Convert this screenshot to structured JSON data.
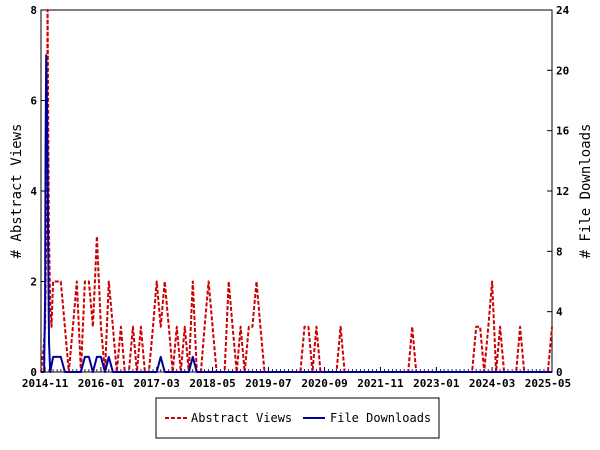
{
  "chart_data": {
    "type": "line",
    "title": "",
    "xlabel": "",
    "ylabel_left": "# Abstract Views",
    "ylabel_right": "# File Downloads",
    "x_range": [
      "2014-10-01",
      "2025-06-01"
    ],
    "x_ticks": [
      "2014-11",
      "2016-01",
      "2017-03",
      "2018-05",
      "2019-07",
      "2020-09",
      "2021-11",
      "2023-01",
      "2024-03",
      "2025-05"
    ],
    "ylim_left": [
      0,
      8
    ],
    "y_ticks_left": [
      0,
      2,
      4,
      6,
      8
    ],
    "ylim_right": [
      0,
      24
    ],
    "y_ticks_right": [
      0,
      4,
      8,
      12,
      16,
      20,
      24
    ],
    "legend_position": "bottom",
    "grid": false,
    "series": [
      {
        "name": "Abstract Views",
        "axis": "left",
        "color": "#cc0000",
        "style": "dashed",
        "points": [
          [
            "2014-10-01",
            0
          ],
          [
            "2014-10-20",
            0.5
          ],
          [
            "2014-11-01",
            1
          ],
          [
            "2014-11-10",
            3
          ],
          [
            "2014-11-15",
            5
          ],
          [
            "2014-11-20",
            8
          ],
          [
            "2014-11-25",
            5.5
          ],
          [
            "2014-12-01",
            3
          ],
          [
            "2014-12-10",
            1.5
          ],
          [
            "2014-12-20",
            1
          ],
          [
            "2015-01-01",
            2
          ],
          [
            "2015-02-01",
            2
          ],
          [
            "2015-03-01",
            2
          ],
          [
            "2015-04-01",
            1
          ],
          [
            "2015-05-01",
            0
          ],
          [
            "2015-06-01",
            1
          ],
          [
            "2015-07-01",
            2
          ],
          [
            "2015-08-01",
            0
          ],
          [
            "2015-09-01",
            2
          ],
          [
            "2015-10-01",
            2
          ],
          [
            "2015-11-01",
            1
          ],
          [
            "2015-12-01",
            3
          ],
          [
            "2016-01-01",
            1
          ],
          [
            "2016-02-01",
            0
          ],
          [
            "2016-03-01",
            2
          ],
          [
            "2016-04-01",
            1
          ],
          [
            "2016-05-01",
            0
          ],
          [
            "2016-06-01",
            1
          ],
          [
            "2016-07-01",
            0
          ],
          [
            "2016-08-01",
            0
          ],
          [
            "2016-09-01",
            1
          ],
          [
            "2016-10-01",
            0
          ],
          [
            "2016-11-01",
            1
          ],
          [
            "2016-12-01",
            0
          ],
          [
            "2017-01-01",
            0
          ],
          [
            "2017-02-01",
            1
          ],
          [
            "2017-03-01",
            2
          ],
          [
            "2017-04-01",
            1
          ],
          [
            "2017-05-01",
            2
          ],
          [
            "2017-06-01",
            1
          ],
          [
            "2017-07-01",
            0
          ],
          [
            "2017-08-01",
            1
          ],
          [
            "2017-09-01",
            0
          ],
          [
            "2017-10-01",
            1
          ],
          [
            "2017-11-01",
            0
          ],
          [
            "2017-12-01",
            2
          ],
          [
            "2018-01-01",
            0
          ],
          [
            "2018-02-01",
            0
          ],
          [
            "2018-03-01",
            1
          ],
          [
            "2018-04-01",
            2
          ],
          [
            "2018-05-01",
            1
          ],
          [
            "2018-06-01",
            0
          ],
          [
            "2018-07-01",
            0
          ],
          [
            "2018-08-01",
            0
          ],
          [
            "2018-09-01",
            2
          ],
          [
            "2018-10-01",
            1
          ],
          [
            "2018-11-01",
            0
          ],
          [
            "2018-12-01",
            1
          ],
          [
            "2019-01-01",
            0
          ],
          [
            "2019-02-01",
            1
          ],
          [
            "2019-03-01",
            1
          ],
          [
            "2019-04-01",
            2
          ],
          [
            "2019-05-01",
            1
          ],
          [
            "2019-06-01",
            0
          ],
          [
            "2019-07-01",
            0
          ],
          [
            "2019-08-01",
            0
          ],
          [
            "2019-09-01",
            0
          ],
          [
            "2019-10-01",
            0
          ],
          [
            "2019-11-01",
            0
          ],
          [
            "2019-12-01",
            0
          ],
          [
            "2020-01-01",
            0
          ],
          [
            "2020-02-01",
            0
          ],
          [
            "2020-03-01",
            0
          ],
          [
            "2020-04-01",
            1
          ],
          [
            "2020-05-01",
            1
          ],
          [
            "2020-06-01",
            0
          ],
          [
            "2020-07-01",
            1
          ],
          [
            "2020-08-01",
            0
          ],
          [
            "2020-09-01",
            0
          ],
          [
            "2020-10-01",
            0
          ],
          [
            "2020-11-01",
            0
          ],
          [
            "2020-12-01",
            0
          ],
          [
            "2021-01-01",
            1
          ],
          [
            "2021-02-01",
            0
          ],
          [
            "2021-03-01",
            0
          ],
          [
            "2022-01-01",
            0
          ],
          [
            "2022-02-01",
            0
          ],
          [
            "2022-03-01",
            0
          ],
          [
            "2022-04-01",
            0
          ],
          [
            "2022-05-01",
            0
          ],
          [
            "2022-06-01",
            0
          ],
          [
            "2022-07-01",
            1
          ],
          [
            "2022-08-01",
            0
          ],
          [
            "2022-09-01",
            0
          ],
          [
            "2023-01-01",
            0
          ],
          [
            "2023-02-01",
            0
          ],
          [
            "2023-03-01",
            0
          ],
          [
            "2023-04-01",
            0
          ],
          [
            "2023-05-01",
            0
          ],
          [
            "2023-06-01",
            0
          ],
          [
            "2023-07-01",
            0
          ],
          [
            "2023-08-01",
            0
          ],
          [
            "2023-09-01",
            0
          ],
          [
            "2023-10-01",
            0
          ],
          [
            "2023-11-01",
            1
          ],
          [
            "2023-12-01",
            1
          ],
          [
            "2024-01-01",
            0
          ],
          [
            "2024-02-01",
            1
          ],
          [
            "2024-03-01",
            2
          ],
          [
            "2024-04-01",
            0
          ],
          [
            "2024-05-01",
            1
          ],
          [
            "2024-06-01",
            0
          ],
          [
            "2024-07-01",
            0
          ],
          [
            "2024-08-01",
            0
          ],
          [
            "2024-09-01",
            0
          ],
          [
            "2024-10-01",
            1
          ],
          [
            "2024-11-01",
            0
          ],
          [
            "2024-12-01",
            0
          ],
          [
            "2025-01-01",
            0
          ],
          [
            "2025-02-01",
            0
          ],
          [
            "2025-03-01",
            0
          ],
          [
            "2025-04-01",
            0
          ],
          [
            "2025-05-01",
            0
          ],
          [
            "2025-06-01",
            1
          ]
        ]
      },
      {
        "name": "File Downloads",
        "axis": "right",
        "color": "#000099",
        "style": "solid",
        "points": [
          [
            "2014-10-01",
            0
          ],
          [
            "2014-10-25",
            0
          ],
          [
            "2014-11-01",
            5
          ],
          [
            "2014-11-05",
            15
          ],
          [
            "2014-11-10",
            21
          ],
          [
            "2014-11-15",
            18
          ],
          [
            "2014-11-20",
            14
          ],
          [
            "2014-11-25",
            8
          ],
          [
            "2014-12-01",
            2
          ],
          [
            "2014-12-10",
            0
          ],
          [
            "2015-01-01",
            1
          ],
          [
            "2015-02-01",
            1
          ],
          [
            "2015-03-01",
            1
          ],
          [
            "2015-04-01",
            0
          ],
          [
            "2015-05-01",
            0
          ],
          [
            "2015-06-01",
            0
          ],
          [
            "2015-07-01",
            0
          ],
          [
            "2015-08-01",
            0
          ],
          [
            "2015-09-01",
            1
          ],
          [
            "2015-10-01",
            1
          ],
          [
            "2015-11-01",
            0
          ],
          [
            "2015-12-01",
            1
          ],
          [
            "2016-01-01",
            1
          ],
          [
            "2016-02-01",
            0
          ],
          [
            "2016-03-01",
            1
          ],
          [
            "2016-04-01",
            0
          ],
          [
            "2017-03-01",
            0
          ],
          [
            "2017-04-01",
            1
          ],
          [
            "2017-05-01",
            0
          ],
          [
            "2017-11-01",
            0
          ],
          [
            "2017-12-01",
            1
          ],
          [
            "2018-01-01",
            0
          ],
          [
            "2025-06-01",
            0
          ]
        ]
      }
    ]
  }
}
